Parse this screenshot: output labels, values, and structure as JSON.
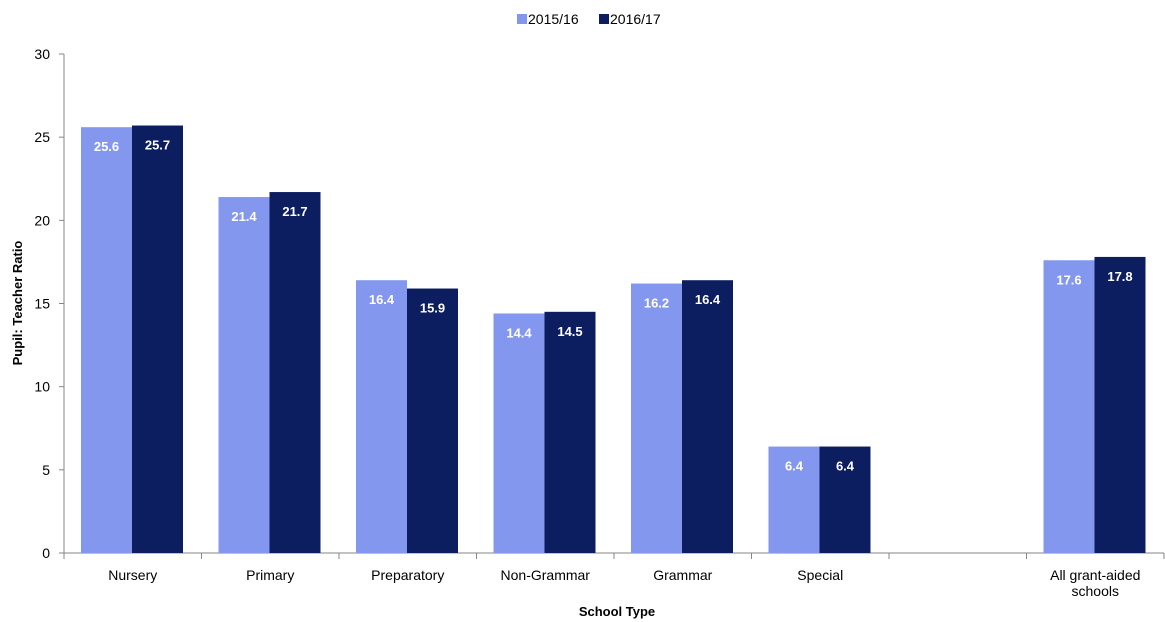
{
  "chart_data": {
    "type": "bar",
    "title": "",
    "xlabel": "School Type",
    "ylabel": "Pupil: Teacher Ratio",
    "ylim": [
      0,
      30
    ],
    "yticks": [
      0,
      5,
      10,
      15,
      20,
      25,
      30
    ],
    "grid": false,
    "legend_position": "top-center",
    "categories": [
      [
        "Nursery"
      ],
      [
        "Primary"
      ],
      [
        "Preparatory"
      ],
      [
        "Non-Grammar"
      ],
      [
        "Grammar"
      ],
      [
        "Special"
      ],
      [],
      [
        "All grant-aided",
        "schools"
      ]
    ],
    "series": [
      {
        "name": "2015/16",
        "color": "#8497ee",
        "values": [
          25.6,
          21.4,
          16.4,
          14.4,
          16.2,
          6.4,
          null,
          17.6
        ],
        "labels": [
          "25.6",
          "21.4",
          "16.4",
          "14.4",
          "16.2",
          "6.4",
          null,
          "17.6"
        ]
      },
      {
        "name": "2016/17",
        "color": "#0c1e60",
        "values": [
          25.7,
          21.7,
          15.9,
          14.5,
          16.4,
          6.4,
          null,
          17.8
        ],
        "labels": [
          "25.7",
          "21.7",
          "15.9",
          "14.5",
          "16.4",
          "6.4",
          null,
          "17.8"
        ]
      }
    ]
  }
}
